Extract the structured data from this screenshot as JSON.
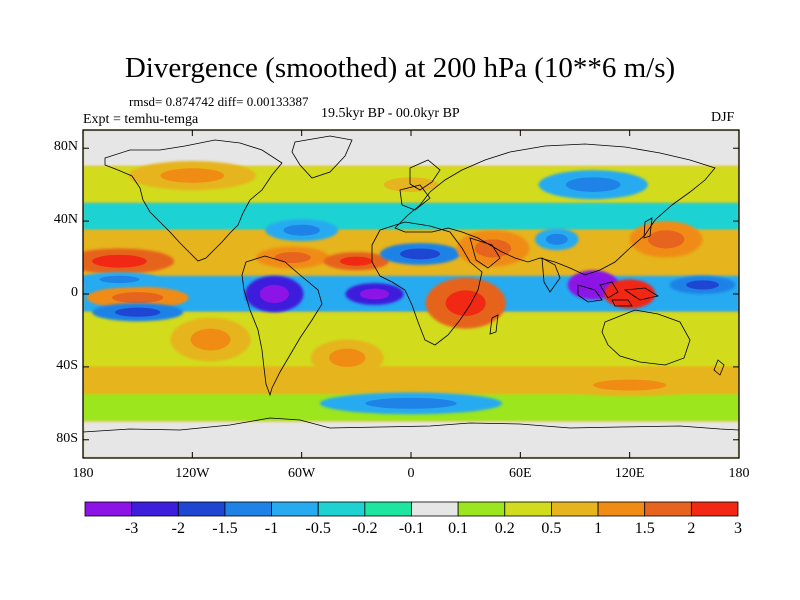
{
  "title": "Divergence (smoothed) at 200 hPa (10**6 m/s)",
  "stats_line": "rmsd= 0.874742 diff= 0.00133387",
  "experiment": "Expt = temhu-temga",
  "period": "19.5kyr BP - 00.0kyr BP",
  "season": "DJF",
  "map": {
    "projection": "cylindrical-equidistant",
    "lon_range": [
      -180,
      180
    ],
    "lat_range": [
      -90,
      90
    ],
    "lat_ticks": [
      {
        "lat": 80,
        "label": "80N"
      },
      {
        "lat": 40,
        "label": "40N"
      },
      {
        "lat": 0,
        "label": "0"
      },
      {
        "lat": -40,
        "label": "40S"
      },
      {
        "lat": -80,
        "label": "80S"
      }
    ],
    "lon_ticks": [
      {
        "lon": -180,
        "label": "180"
      },
      {
        "lon": -120,
        "label": "120W"
      },
      {
        "lon": -60,
        "label": "60W"
      },
      {
        "lon": 0,
        "label": "0"
      },
      {
        "lon": 60,
        "label": "60E"
      },
      {
        "lon": 120,
        "label": "120E"
      },
      {
        "lon": 180,
        "label": "180"
      }
    ],
    "field_features": [
      {
        "lon": -160,
        "lat": 18,
        "rx": 30,
        "ry": 7,
        "level": 12
      },
      {
        "lon": -150,
        "lat": -2,
        "rx": 28,
        "ry": 6,
        "level": 11
      },
      {
        "lon": -160,
        "lat": 8,
        "rx": 22,
        "ry": 4,
        "level": 4
      },
      {
        "lon": -150,
        "lat": -10,
        "rx": 25,
        "ry": 5,
        "level": 3
      },
      {
        "lon": -110,
        "lat": -25,
        "rx": 22,
        "ry": 12,
        "level": 10
      },
      {
        "lon": -75,
        "lat": 0,
        "rx": 16,
        "ry": 10,
        "level": 1
      },
      {
        "lon": -65,
        "lat": 20,
        "rx": 20,
        "ry": 6,
        "level": 11
      },
      {
        "lon": -60,
        "lat": 35,
        "rx": 20,
        "ry": 6,
        "level": 4
      },
      {
        "lon": -30,
        "lat": 18,
        "rx": 18,
        "ry": 5,
        "level": 12
      },
      {
        "lon": -20,
        "lat": 0,
        "rx": 16,
        "ry": 6,
        "level": 1
      },
      {
        "lon": -35,
        "lat": -35,
        "rx": 20,
        "ry": 10,
        "level": 10
      },
      {
        "lon": 5,
        "lat": 22,
        "rx": 22,
        "ry": 6,
        "level": 3
      },
      {
        "lon": 30,
        "lat": -5,
        "rx": 22,
        "ry": 14,
        "level": 12
      },
      {
        "lon": 45,
        "lat": 25,
        "rx": 20,
        "ry": 10,
        "level": 11
      },
      {
        "lon": 80,
        "lat": 30,
        "rx": 12,
        "ry": 6,
        "level": 4
      },
      {
        "lon": 100,
        "lat": 5,
        "rx": 14,
        "ry": 8,
        "level": 0
      },
      {
        "lon": 120,
        "lat": 0,
        "rx": 14,
        "ry": 8,
        "level": 13
      },
      {
        "lon": 140,
        "lat": 30,
        "rx": 20,
        "ry": 10,
        "level": 11
      },
      {
        "lon": 160,
        "lat": 5,
        "rx": 18,
        "ry": 5,
        "level": 3
      },
      {
        "lon": 100,
        "lat": 60,
        "rx": 30,
        "ry": 8,
        "level": 4
      },
      {
        "lon": -120,
        "lat": 65,
        "rx": 35,
        "ry": 8,
        "level": 10
      },
      {
        "lon": 0,
        "lat": 60,
        "rx": 30,
        "ry": 8,
        "level": 9
      },
      {
        "lon": 0,
        "lat": -60,
        "rx": 50,
        "ry": 6,
        "level": 4
      },
      {
        "lon": 120,
        "lat": -50,
        "rx": 40,
        "ry": 6,
        "level": 10
      }
    ]
  },
  "colorbar": {
    "colors": [
      "#8c14e6",
      "#3c1edc",
      "#1e46d2",
      "#1e82e6",
      "#28aaf0",
      "#1ed2d2",
      "#1ee6a0",
      "#e6e6e6",
      "#9be61e",
      "#d2dc1e",
      "#e6b41e",
      "#f08c14",
      "#e6641e",
      "#f02814"
    ],
    "labels": [
      "-3",
      "-2",
      "-1.5",
      "-1",
      "-0.5",
      "-0.2",
      "-0.1",
      "0.1",
      "0.2",
      "0.5",
      "1",
      "1.5",
      "2",
      "3"
    ]
  }
}
